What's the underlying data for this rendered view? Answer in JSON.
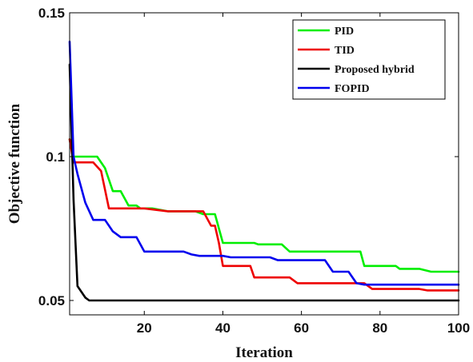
{
  "chart_data": {
    "type": "line",
    "title": "",
    "xlabel": "Iteration",
    "ylabel": "Objective function",
    "xlim": [
      1,
      100
    ],
    "ylim": [
      0.045,
      0.15
    ],
    "xticks": [
      20,
      40,
      60,
      80,
      100
    ],
    "yticks": [
      0.05,
      0.1,
      0.15
    ],
    "ytick_labels": [
      "0.05",
      "0.1",
      "0.15"
    ],
    "grid": false,
    "legend_position": "top-right",
    "series": [
      {
        "name": "PID",
        "color": "#00ee00",
        "points": [
          [
            1,
            0.106
          ],
          [
            2,
            0.1
          ],
          [
            6,
            0.1
          ],
          [
            8,
            0.1
          ],
          [
            10,
            0.096
          ],
          [
            12,
            0.088
          ],
          [
            14,
            0.088
          ],
          [
            16,
            0.083
          ],
          [
            18,
            0.083
          ],
          [
            19,
            0.082
          ],
          [
            22,
            0.082
          ],
          [
            26,
            0.081
          ],
          [
            28,
            0.081
          ],
          [
            30,
            0.081
          ],
          [
            33,
            0.081
          ],
          [
            35,
            0.08
          ],
          [
            38,
            0.08
          ],
          [
            40,
            0.07
          ],
          [
            48,
            0.07
          ],
          [
            49,
            0.0695
          ],
          [
            55,
            0.0695
          ],
          [
            57,
            0.067
          ],
          [
            75,
            0.067
          ],
          [
            76,
            0.062
          ],
          [
            84,
            0.062
          ],
          [
            85,
            0.061
          ],
          [
            90,
            0.061
          ],
          [
            93,
            0.06
          ],
          [
            100,
            0.06
          ]
        ]
      },
      {
        "name": "TID",
        "color": "#ee0000",
        "points": [
          [
            1,
            0.106
          ],
          [
            2,
            0.098
          ],
          [
            7,
            0.098
          ],
          [
            9,
            0.095
          ],
          [
            11,
            0.082
          ],
          [
            20,
            0.082
          ],
          [
            26,
            0.081
          ],
          [
            30,
            0.081
          ],
          [
            33,
            0.081
          ],
          [
            35,
            0.081
          ],
          [
            37,
            0.076
          ],
          [
            38,
            0.076
          ],
          [
            39,
            0.07
          ],
          [
            40,
            0.062
          ],
          [
            47,
            0.062
          ],
          [
            48,
            0.058
          ],
          [
            57,
            0.058
          ],
          [
            59,
            0.056
          ],
          [
            76,
            0.056
          ],
          [
            78,
            0.054
          ],
          [
            90,
            0.054
          ],
          [
            92,
            0.0535
          ],
          [
            100,
            0.0535
          ]
        ]
      },
      {
        "name": "Proposed hybrid",
        "color": "#000000",
        "points": [
          [
            1,
            0.132
          ],
          [
            2,
            0.085
          ],
          [
            3,
            0.055
          ],
          [
            5,
            0.051
          ],
          [
            6,
            0.05
          ],
          [
            8,
            0.05
          ],
          [
            100,
            0.05
          ]
        ]
      },
      {
        "name": "FOPID",
        "color": "#0000ee",
        "points": [
          [
            1,
            0.14
          ],
          [
            2,
            0.1
          ],
          [
            3,
            0.094
          ],
          [
            5,
            0.084
          ],
          [
            7,
            0.078
          ],
          [
            10,
            0.078
          ],
          [
            12,
            0.074
          ],
          [
            14,
            0.072
          ],
          [
            18,
            0.072
          ],
          [
            20,
            0.067
          ],
          [
            27,
            0.067
          ],
          [
            30,
            0.067
          ],
          [
            32,
            0.066
          ],
          [
            34,
            0.0655
          ],
          [
            40,
            0.0655
          ],
          [
            42,
            0.065
          ],
          [
            52,
            0.065
          ],
          [
            54,
            0.064
          ],
          [
            58,
            0.064
          ],
          [
            66,
            0.064
          ],
          [
            68,
            0.06
          ],
          [
            72,
            0.06
          ],
          [
            74,
            0.056
          ],
          [
            76,
            0.0555
          ],
          [
            100,
            0.0555
          ]
        ]
      }
    ]
  }
}
